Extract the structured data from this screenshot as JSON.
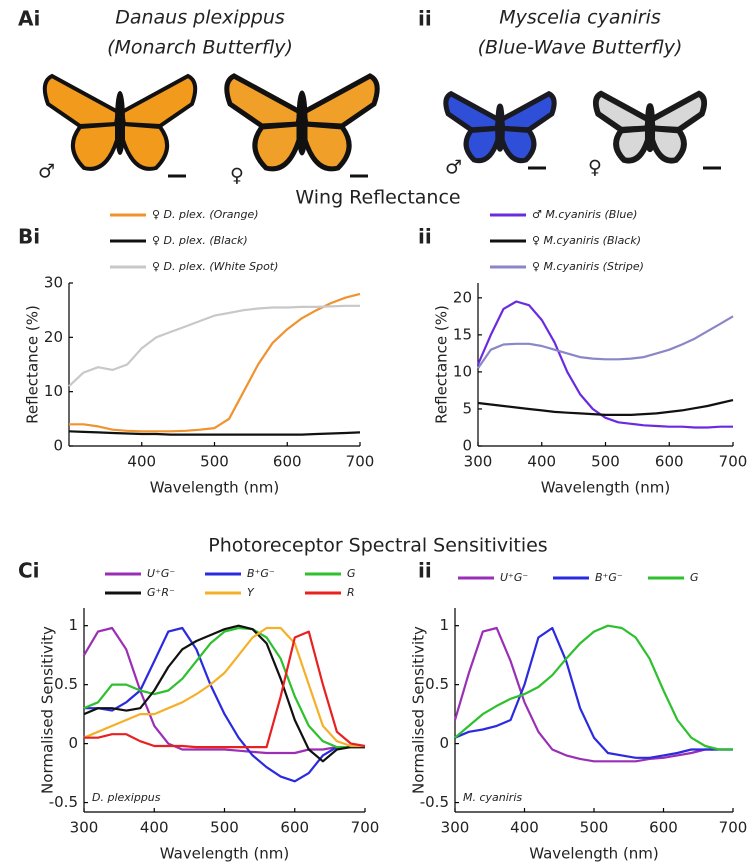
{
  "panels": {
    "a_label": "Ai",
    "a_ii": "ii",
    "species_1": "Danaus plexippus",
    "common_1": "(Monarch Butterfly)",
    "species_2": "Myscelia cyaniris",
    "common_2": "(Blue-Wave Butterfly)",
    "sex_labels": [
      "♂",
      "♀",
      "♂",
      "♀"
    ],
    "section_b": "Wing Reflectance",
    "b_label": "Bi",
    "b_ii": "ii",
    "section_c": "Photoreceptor Spectral Sensitivities",
    "c_label": "Ci",
    "c_ii": "ii"
  },
  "chart_data": [
    {
      "type": "line",
      "x_label": "Wavelength (nm)",
      "y_label": "Reflectance (%)",
      "x": [
        300,
        320,
        340,
        360,
        380,
        400,
        420,
        440,
        460,
        480,
        500,
        520,
        540,
        560,
        580,
        600,
        620,
        640,
        660,
        680,
        700
      ],
      "xlim": [
        300,
        700
      ],
      "xticks": [
        400,
        500,
        600,
        700
      ],
      "ylim": [
        0,
        30
      ],
      "yticks": [
        0,
        10,
        20,
        30
      ],
      "series": [
        {
          "name": "♀ D. plex. (Orange)",
          "color": "#f0922e",
          "values": [
            4,
            4,
            3.6,
            3,
            2.8,
            2.7,
            2.7,
            2.7,
            2.8,
            3,
            3.3,
            5,
            10,
            15,
            19,
            21.5,
            23.5,
            25,
            26.3,
            27.3,
            28
          ]
        },
        {
          "name": "♀ D. plex. (Black)",
          "color": "#111111",
          "values": [
            2.7,
            2.6,
            2.5,
            2.4,
            2.3,
            2.2,
            2.2,
            2.1,
            2.1,
            2.1,
            2.1,
            2.1,
            2.1,
            2.1,
            2.1,
            2.1,
            2.1,
            2.2,
            2.3,
            2.4,
            2.5
          ]
        },
        {
          "name": "♀ D. plex. (White Spot)",
          "color": "#c8c8c8",
          "values": [
            11,
            13.5,
            14.5,
            14,
            15,
            18,
            20,
            21,
            22,
            23,
            24,
            24.5,
            25,
            25.3,
            25.5,
            25.5,
            25.6,
            25.6,
            25.7,
            25.8,
            25.8
          ]
        }
      ]
    },
    {
      "type": "line",
      "x_label": "Wavelength (nm)",
      "y_label": "Reflectance (%)",
      "x": [
        300,
        320,
        340,
        360,
        380,
        400,
        420,
        440,
        460,
        480,
        500,
        520,
        540,
        560,
        580,
        600,
        620,
        640,
        660,
        680,
        700
      ],
      "xlim": [
        300,
        700
      ],
      "xticks": [
        300,
        400,
        500,
        600,
        700
      ],
      "ylim": [
        0,
        22
      ],
      "yticks": [
        0,
        5,
        10,
        15,
        20
      ],
      "series": [
        {
          "name": "♂ M.cyaniris (Blue)",
          "color": "#6a2be0",
          "values": [
            11,
            15,
            18.5,
            19.5,
            19,
            17,
            14,
            10,
            7,
            5,
            3.8,
            3.2,
            3,
            2.8,
            2.7,
            2.6,
            2.6,
            2.5,
            2.5,
            2.6,
            2.6
          ]
        },
        {
          "name": "♀ M.cyaniris (Black)",
          "color": "#111111",
          "values": [
            5.8,
            5.6,
            5.4,
            5.2,
            5,
            4.8,
            4.6,
            4.5,
            4.4,
            4.3,
            4.2,
            4.2,
            4.2,
            4.3,
            4.4,
            4.6,
            4.8,
            5.1,
            5.4,
            5.8,
            6.2
          ]
        },
        {
          "name": "♀ M.cyaniris (Stripe)",
          "color": "#8a86c8",
          "values": [
            10.5,
            13,
            13.7,
            13.8,
            13.8,
            13.5,
            13,
            12.5,
            12,
            11.8,
            11.7,
            11.7,
            11.8,
            12,
            12.5,
            13,
            13.7,
            14.5,
            15.5,
            16.5,
            17.5
          ]
        }
      ]
    },
    {
      "type": "line",
      "x_label": "Wavelength (nm)",
      "y_label": "Normalised Sensitivity",
      "annotation": "D. plexippus",
      "x": [
        300,
        320,
        340,
        360,
        380,
        400,
        420,
        440,
        460,
        480,
        500,
        520,
        540,
        560,
        580,
        600,
        620,
        640,
        660,
        680,
        700
      ],
      "xlim": [
        300,
        700
      ],
      "xticks": [
        300,
        400,
        500,
        600,
        700
      ],
      "ylim": [
        -0.58,
        1.15
      ],
      "yticks": [
        -0.5,
        0,
        0.5,
        1
      ],
      "series": [
        {
          "name": "U⁺G⁻",
          "color": "#9a2fb5",
          "values": [
            0.75,
            0.95,
            0.98,
            0.8,
            0.45,
            0.15,
            0,
            -0.05,
            -0.05,
            -0.05,
            -0.05,
            -0.06,
            -0.07,
            -0.08,
            -0.08,
            -0.08,
            -0.05,
            -0.05,
            -0.03,
            -0.03,
            -0.03
          ]
        },
        {
          "name": "B⁺G⁻",
          "color": "#2a2ae0",
          "values": [
            0.3,
            0.3,
            0.28,
            0.35,
            0.45,
            0.7,
            0.95,
            0.98,
            0.8,
            0.5,
            0.25,
            0.05,
            -0.1,
            -0.2,
            -0.28,
            -0.32,
            -0.25,
            -0.1,
            -0.03,
            -0.03,
            -0.03
          ]
        },
        {
          "name": "G",
          "color": "#2ec02e",
          "values": [
            0.3,
            0.35,
            0.5,
            0.5,
            0.45,
            0.42,
            0.45,
            0.55,
            0.7,
            0.85,
            0.95,
            0.98,
            0.97,
            0.9,
            0.72,
            0.4,
            0.15,
            0.02,
            -0.03,
            -0.03,
            -0.03
          ]
        },
        {
          "name": "G⁺R⁻",
          "color": "#111111",
          "values": [
            0.25,
            0.3,
            0.3,
            0.28,
            0.3,
            0.45,
            0.65,
            0.8,
            0.87,
            0.92,
            0.97,
            1,
            0.97,
            0.85,
            0.55,
            0.2,
            -0.05,
            -0.15,
            -0.05,
            -0.03,
            -0.03
          ]
        },
        {
          "name": "Y",
          "color": "#f5b02a",
          "values": [
            0.05,
            0.1,
            0.15,
            0.2,
            0.25,
            0.25,
            0.3,
            0.35,
            0.42,
            0.5,
            0.6,
            0.75,
            0.9,
            0.98,
            0.98,
            0.85,
            0.5,
            0.15,
            0.02,
            -0.02,
            -0.02
          ]
        },
        {
          "name": "R",
          "color": "#e82020",
          "values": [
            0.05,
            0.05,
            0.08,
            0.08,
            0.02,
            -0.02,
            -0.02,
            -0.02,
            -0.03,
            -0.03,
            -0.03,
            -0.03,
            -0.03,
            -0.03,
            0.4,
            0.9,
            0.95,
            0.5,
            0.1,
            0,
            -0.02
          ]
        }
      ]
    },
    {
      "type": "line",
      "x_label": "Wavelength (nm)",
      "y_label": "Normalised Sensitivity",
      "annotation": "M. cyaniris",
      "x": [
        300,
        320,
        340,
        360,
        380,
        400,
        420,
        440,
        460,
        480,
        500,
        520,
        540,
        560,
        580,
        600,
        620,
        640,
        660,
        680,
        700
      ],
      "xlim": [
        300,
        700
      ],
      "xticks": [
        300,
        400,
        500,
        600,
        700
      ],
      "ylim": [
        -0.58,
        1.15
      ],
      "yticks": [
        -0.5,
        0,
        0.5,
        1
      ],
      "series": [
        {
          "name": "U⁺G⁻",
          "color": "#9a2fb5",
          "values": [
            0.2,
            0.6,
            0.95,
            0.98,
            0.7,
            0.35,
            0.1,
            -0.05,
            -0.1,
            -0.13,
            -0.15,
            -0.15,
            -0.15,
            -0.15,
            -0.13,
            -0.12,
            -0.1,
            -0.08,
            -0.05,
            -0.05,
            -0.05
          ]
        },
        {
          "name": "B⁺G⁻",
          "color": "#2a2ae0",
          "values": [
            0.05,
            0.1,
            0.12,
            0.15,
            0.2,
            0.5,
            0.9,
            0.98,
            0.7,
            0.3,
            0.05,
            -0.08,
            -0.1,
            -0.12,
            -0.12,
            -0.1,
            -0.08,
            -0.05,
            -0.05,
            -0.05,
            -0.05
          ]
        },
        {
          "name": "G",
          "color": "#2ec02e",
          "values": [
            0.05,
            0.15,
            0.25,
            0.32,
            0.38,
            0.42,
            0.48,
            0.58,
            0.72,
            0.85,
            0.95,
            1,
            0.98,
            0.9,
            0.72,
            0.45,
            0.2,
            0.05,
            -0.02,
            -0.05,
            -0.05
          ]
        }
      ]
    }
  ]
}
